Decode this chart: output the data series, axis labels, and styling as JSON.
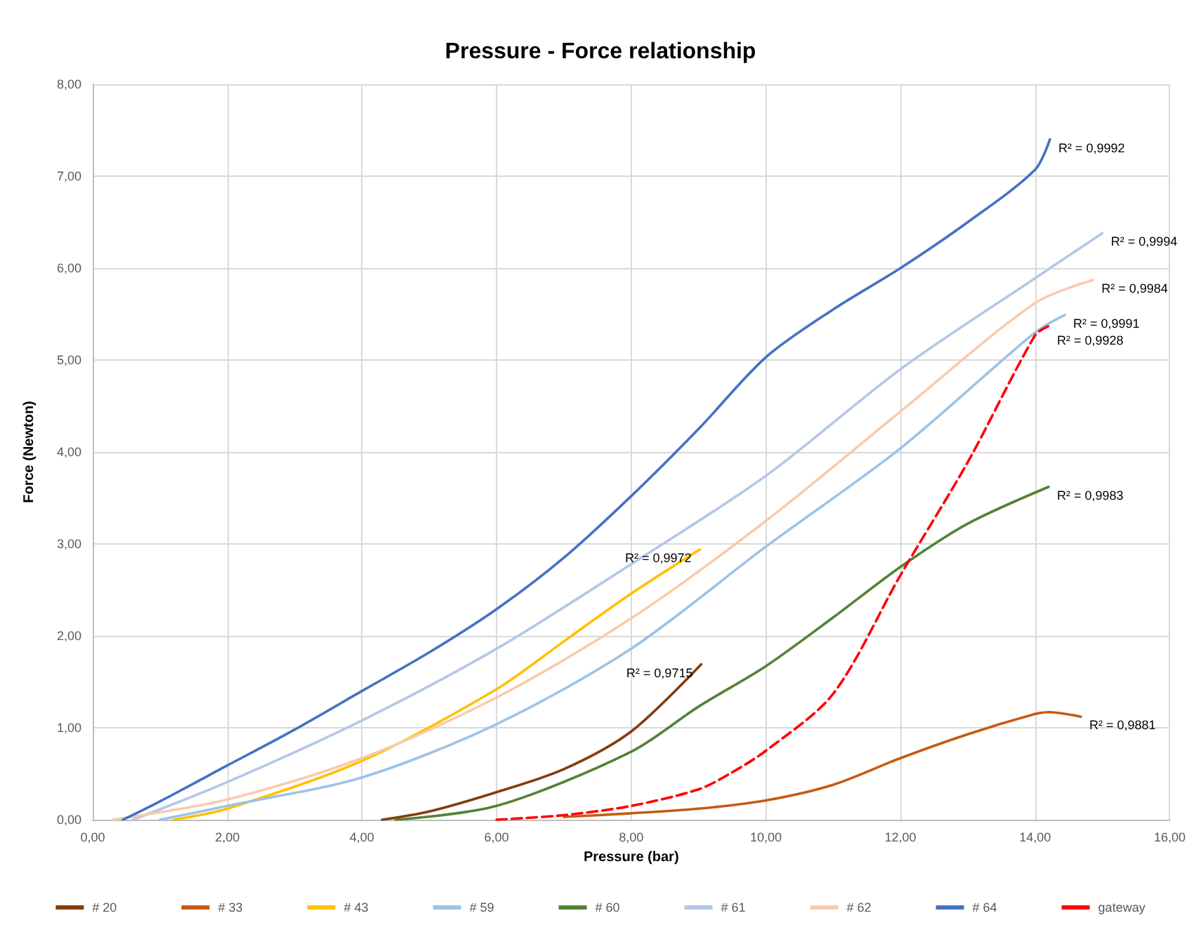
{
  "chart_data": {
    "type": "line",
    "title": "Pressure - Force relationship",
    "xlabel": "Pressure (bar)",
    "ylabel": "Force (Newton)",
    "xlim": [
      0,
      16
    ],
    "ylim": [
      0,
      8
    ],
    "xticks": [
      {
        "value": 0,
        "label": "0,00"
      },
      {
        "value": 2,
        "label": "2,00"
      },
      {
        "value": 4,
        "label": "4,00"
      },
      {
        "value": 6,
        "label": "6,00"
      },
      {
        "value": 8,
        "label": "8,00"
      },
      {
        "value": 10,
        "label": "10,00"
      },
      {
        "value": 12,
        "label": "12,00"
      },
      {
        "value": 14,
        "label": "14,00"
      },
      {
        "value": 16,
        "label": "16,00"
      }
    ],
    "yticks": [
      {
        "value": 0,
        "label": "0,00"
      },
      {
        "value": 1,
        "label": "1,00"
      },
      {
        "value": 2,
        "label": "2,00"
      },
      {
        "value": 3,
        "label": "3,00"
      },
      {
        "value": 4,
        "label": "4,00"
      },
      {
        "value": 5,
        "label": "5,00"
      },
      {
        "value": 6,
        "label": "6,00"
      },
      {
        "value": 7,
        "label": "7,00"
      },
      {
        "value": 8,
        "label": "8,00"
      }
    ],
    "grid": true,
    "legend": "bottom",
    "marker": "none",
    "line_style": "solid",
    "series": [
      {
        "name": "# 20",
        "color": "#843c0c",
        "x": [
          4.3,
          5,
          6,
          7,
          8,
          9.04
        ],
        "values": [
          0,
          0.09,
          0.3,
          0.55,
          0.96,
          1.69
        ]
      },
      {
        "name": "# 33",
        "color": "#c55a11",
        "x": [
          7,
          8,
          9,
          10,
          11,
          12,
          13,
          14,
          14.2,
          14.68
        ],
        "values": [
          0.03,
          0.07,
          0.12,
          0.21,
          0.38,
          0.67,
          0.93,
          1.15,
          1.17,
          1.12
        ]
      },
      {
        "name": "# 43",
        "color": "#ffc000",
        "x": [
          1.2,
          2,
          4,
          6,
          7,
          8,
          9.02
        ],
        "values": [
          0,
          0.12,
          0.64,
          1.42,
          1.94,
          2.46,
          2.94
        ]
      },
      {
        "name": "# 59",
        "color": "#9dc3e6",
        "x": [
          1,
          2,
          4,
          6,
          8,
          10,
          12,
          14,
          14.44
        ],
        "values": [
          0,
          0.15,
          0.46,
          1.04,
          1.86,
          2.97,
          4.04,
          5.3,
          5.49
        ]
      },
      {
        "name": "# 60",
        "color": "#548235",
        "x": [
          4.5,
          6,
          8,
          9,
          10,
          11,
          12,
          13,
          14.2
        ],
        "values": [
          0,
          0.15,
          0.74,
          1.23,
          1.67,
          2.2,
          2.75,
          3.22,
          3.62
        ]
      },
      {
        "name": "# 61",
        "color": "#b4c7e7",
        "x": [
          0.6,
          2,
          4,
          6,
          8,
          10,
          12,
          14,
          15
        ],
        "values": [
          0,
          0.41,
          1.08,
          1.86,
          2.78,
          3.74,
          4.9,
          5.89,
          6.38
        ]
      },
      {
        "name": "# 62",
        "color": "#f8cbad",
        "x": [
          0.3,
          2,
          4,
          6,
          8,
          10,
          12,
          14,
          14.86
        ],
        "values": [
          0,
          0.22,
          0.67,
          1.33,
          2.19,
          3.25,
          4.44,
          5.62,
          5.87
        ]
      },
      {
        "name": "# 64",
        "color": "#4472c4",
        "x": [
          0.45,
          1,
          2,
          3,
          4,
          5,
          6,
          7,
          8,
          9,
          10,
          11,
          12,
          13,
          14,
          14.22
        ],
        "values": [
          0,
          0.2,
          0.59,
          0.98,
          1.4,
          1.82,
          2.29,
          2.85,
          3.52,
          4.25,
          5.03,
          5.55,
          6,
          6.5,
          7.07,
          7.4
        ]
      },
      {
        "name": "gateway",
        "color": "#ff0000",
        "line_style": "dashed",
        "x": [
          6,
          7,
          8,
          9,
          9.44,
          10,
          11,
          12,
          13,
          14,
          14.2
        ],
        "values": [
          0,
          0.05,
          0.15,
          0.33,
          0.49,
          0.75,
          1.37,
          2.66,
          3.89,
          5.27,
          5.37
        ]
      }
    ],
    "annotations": [
      {
        "text": "R² = 0,9992",
        "x": 14.22,
        "y": 7.4
      },
      {
        "text": "R² = 0,9994",
        "x": 15,
        "y": 6.38
      },
      {
        "text": "R² = 0,9984",
        "x": 14.86,
        "y": 5.87
      },
      {
        "text": "R² = 0,9991",
        "x": 14.44,
        "y": 5.49
      },
      {
        "text": "R² = 0,9928",
        "x": 14.2,
        "y": 5.37
      },
      {
        "text": "R² = 0,9983",
        "x": 14.2,
        "y": 3.62
      },
      {
        "text": "R² = 0,9972",
        "x": 9.02,
        "y": 2.94
      },
      {
        "text": "R² = 0,9715",
        "x": 9.04,
        "y": 1.69
      },
      {
        "text": "R² = 0,9881",
        "x": 14.68,
        "y": 1.12
      }
    ]
  }
}
